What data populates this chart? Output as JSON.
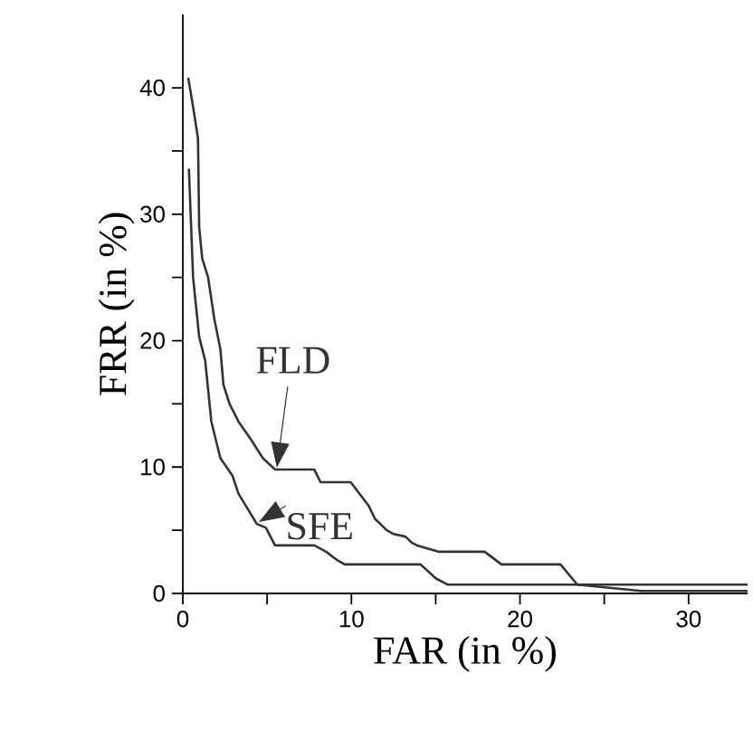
{
  "chart_data": {
    "type": "line",
    "xlabel": "FAR (in %)",
    "ylabel": "FRR (in %)",
    "xlim": [
      0,
      33.5
    ],
    "ylim": [
      0,
      45.8
    ],
    "xticks": [
      0,
      {
        "value": 5,
        "label": null
      },
      10,
      {
        "value": 15,
        "label": null
      },
      20,
      {
        "value": 25,
        "label": null
      },
      30
    ],
    "yticks": [
      0,
      {
        "value": 5,
        "label": null
      },
      10,
      {
        "value": 15,
        "label": null
      },
      20,
      {
        "value": 25,
        "label": null
      },
      30,
      {
        "value": 35,
        "label": null
      },
      40
    ],
    "grid": false,
    "marker": "none",
    "line_style": "solid",
    "series": [
      {
        "name": "FLD",
        "color": "#333333",
        "x": [
          0.32,
          0.61,
          0.9,
          0.97,
          1.15,
          1.5,
          1.87,
          2.23,
          2.41,
          2.77,
          3.3,
          4.03,
          4.75,
          5.47,
          7.8,
          8.17,
          9.96,
          11.04,
          11.4,
          12.1,
          12.5,
          13.2,
          13.6,
          13.9,
          15.2,
          17.9,
          18.9,
          22.4,
          23.4,
          33.5
        ],
        "values": [
          40.8,
          38.5,
          36,
          29,
          26.5,
          25,
          21.7,
          19.3,
          16.5,
          15,
          13.6,
          12.2,
          10.7,
          9.8,
          9.8,
          8.8,
          8.8,
          6.9,
          5.9,
          5,
          4.7,
          4.5,
          4,
          3.8,
          3.3,
          3.3,
          2.3,
          2.3,
          0.7,
          0.7
        ]
      },
      {
        "name": "SFE",
        "color": "#333333",
        "x": [
          0.36,
          0.61,
          0.97,
          1.33,
          1.69,
          2.23,
          2.95,
          3.3,
          4.39,
          4.93,
          5.47,
          7.8,
          8.5,
          9.2,
          9.6,
          14.1,
          15,
          15.7,
          23.4,
          27.2,
          33.5
        ],
        "values": [
          33.6,
          25,
          20.3,
          18.4,
          13.6,
          10.7,
          9.3,
          7.9,
          5.5,
          5.2,
          3.8,
          3.8,
          3.3,
          2.6,
          2.3,
          2.3,
          1.2,
          0.7,
          0.7,
          0.2,
          0.2
        ]
      }
    ]
  }
}
